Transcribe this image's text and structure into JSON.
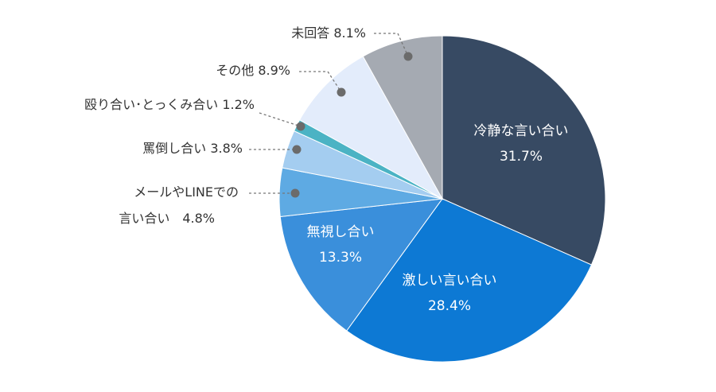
{
  "chart_data": {
    "type": "pie",
    "start": "12 o'clock",
    "direction": "clockwise",
    "slices": [
      {
        "label": "冷静な言い合い",
        "value": 31.7,
        "value_text": "31.7%",
        "color": "#374a63",
        "label_position": "inside"
      },
      {
        "label": "激しい言い合い",
        "value": 28.4,
        "value_text": "28.4%",
        "color": "#0d79d4",
        "label_position": "inside"
      },
      {
        "label": "無視し合い",
        "value": 13.3,
        "value_text": "13.3%",
        "color": "#3a8fdb",
        "label_position": "inside"
      },
      {
        "label": "メールやLINEでの言い合い",
        "value": 4.8,
        "value_text": "4.8%",
        "color": "#5eaae3",
        "label_position": "outside",
        "text_lines": [
          "メールやLINEでの",
          "言い合い　4.8%"
        ]
      },
      {
        "label": "罵倒し合い",
        "value": 3.8,
        "value_text": "3.8%",
        "color": "#a4cdf0",
        "label_position": "outside",
        "text_lines": [
          "罵倒し合い 3.8%"
        ]
      },
      {
        "label": "殴り合い･とっくみ合い",
        "value": 1.2,
        "value_text": "1.2%",
        "color": "#4bb3c4",
        "label_position": "outside",
        "text_lines": [
          "殴り合い･とっくみ合い 1.2%"
        ]
      },
      {
        "label": "その他",
        "value": 8.9,
        "value_text": "8.9%",
        "color": "#e3ecfb",
        "label_position": "outside",
        "text_lines": [
          "その他 8.9%"
        ]
      },
      {
        "label": "未回答",
        "value": 8.1,
        "value_text": "8.1%",
        "color": "#a5aab2",
        "label_position": "outside",
        "text_lines": [
          "未回答 8.1%"
        ]
      }
    ]
  }
}
